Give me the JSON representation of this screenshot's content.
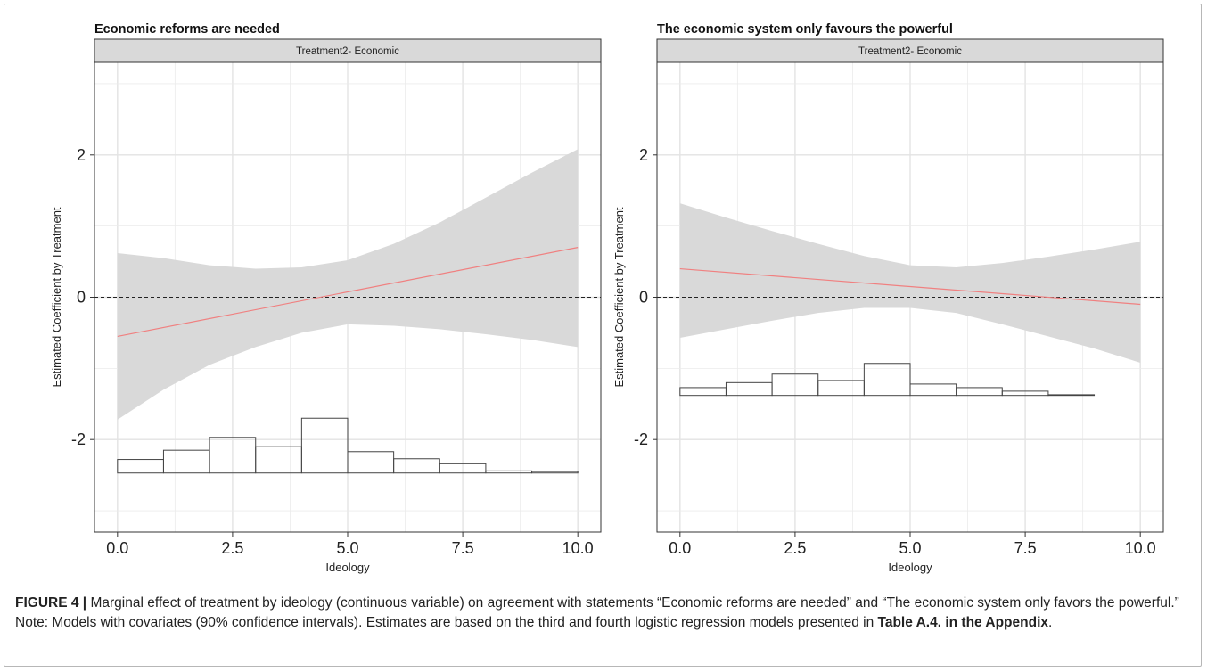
{
  "chart_data": [
    {
      "type": "line",
      "title": "Economic reforms are needed",
      "facet_label": "Treatment2- Economic",
      "xlabel": "Ideology",
      "ylabel": "Estimated Coefficient by Treatment",
      "xlim": [
        -0.5,
        10.5
      ],
      "ylim": [
        -3.3,
        3.3
      ],
      "xticks": [
        0,
        2.5,
        5,
        7.5,
        10
      ],
      "xtick_labels": [
        "0.0",
        "2.5",
        "5.0",
        "7.5",
        "10.0"
      ],
      "yticks": [
        -2,
        0,
        2
      ],
      "ytick_labels": [
        "-2",
        "0",
        "2"
      ],
      "grid": true,
      "reference_line": 0,
      "estimate": {
        "x": [
          0,
          10
        ],
        "y": [
          -0.55,
          0.7
        ]
      },
      "confidence_band": {
        "x": [
          0,
          1,
          2,
          3,
          4,
          5,
          6,
          7,
          8,
          9,
          10
        ],
        "lower": [
          -1.72,
          -1.3,
          -0.95,
          -0.7,
          -0.5,
          -0.38,
          -0.4,
          -0.45,
          -0.52,
          -0.6,
          -0.7
        ],
        "upper": [
          0.62,
          0.55,
          0.45,
          0.4,
          0.42,
          0.52,
          0.75,
          1.05,
          1.4,
          1.75,
          2.08
        ]
      },
      "histogram": {
        "bin_edges": [
          0,
          1,
          2,
          3,
          4,
          5,
          6,
          7,
          8,
          9,
          10
        ],
        "base": -2.47,
        "tops": [
          -2.28,
          -2.15,
          -1.97,
          -2.1,
          -1.7,
          -2.17,
          -2.27,
          -2.34,
          -2.44,
          -2.45
        ]
      }
    },
    {
      "type": "line",
      "title": "The economic system only favours the powerful",
      "facet_label": "Treatment2- Economic",
      "xlabel": "Ideology",
      "ylabel": "Estimated Coefficient by Treatment",
      "xlim": [
        -0.5,
        10.5
      ],
      "ylim": [
        -3.3,
        3.3
      ],
      "xticks": [
        0,
        2.5,
        5,
        7.5,
        10
      ],
      "xtick_labels": [
        "0.0",
        "2.5",
        "5.0",
        "7.5",
        "10.0"
      ],
      "yticks": [
        -2,
        0,
        2
      ],
      "ytick_labels": [
        "-2",
        "0",
        "2"
      ],
      "grid": true,
      "reference_line": 0,
      "estimate": {
        "x": [
          0,
          10
        ],
        "y": [
          0.4,
          -0.1
        ]
      },
      "confidence_band": {
        "x": [
          0,
          1,
          2,
          3,
          4,
          5,
          6,
          7,
          8,
          9,
          10
        ],
        "lower": [
          -0.57,
          -0.45,
          -0.33,
          -0.22,
          -0.15,
          -0.15,
          -0.22,
          -0.38,
          -0.55,
          -0.72,
          -0.92
        ],
        "upper": [
          1.32,
          1.12,
          0.93,
          0.75,
          0.58,
          0.45,
          0.42,
          0.48,
          0.57,
          0.67,
          0.78
        ]
      },
      "histogram": {
        "bin_edges": [
          0,
          1,
          2,
          3,
          4,
          5,
          6,
          7,
          8,
          9,
          10
        ],
        "base": -1.38,
        "tops": [
          -1.27,
          -1.2,
          -1.08,
          -1.17,
          -0.93,
          -1.22,
          -1.27,
          -1.32,
          -1.37,
          -1.38
        ]
      }
    }
  ],
  "caption": {
    "figure_label": "FIGURE 4 |",
    "text": " Marginal effect of treatment by ideology (continuous variable) on agreement with statements “Economic reforms are needed” and “The economic system only favors the powerful.” Note: Models with covariates (90% confidence intervals). Estimates are based on the third and fourth logistic regression models presented in ",
    "bold_ref": "Table A.4. in the Appendix",
    "end": "."
  },
  "colors": {
    "band": "#d9d9d9",
    "estimate": "#f08080",
    "strip": "#d9d9d9",
    "grid": "#ebebeb"
  }
}
